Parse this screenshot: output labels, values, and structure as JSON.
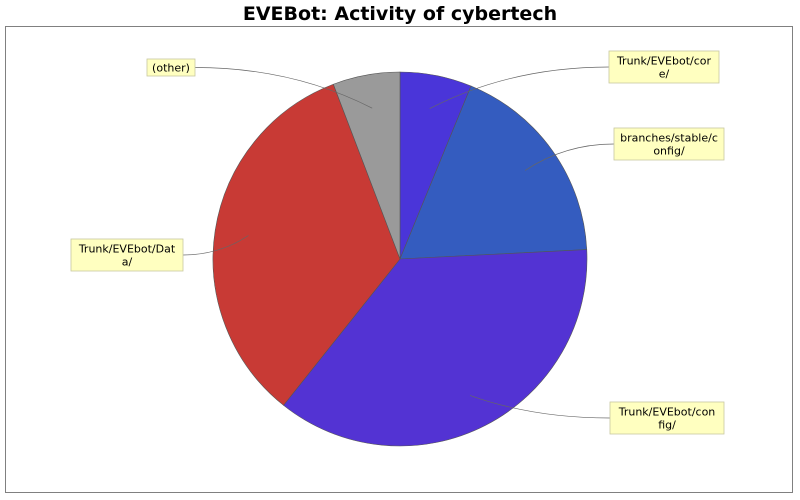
{
  "chart_data": {
    "type": "pie",
    "title": "EVEBot: Activity of cybertech",
    "slices": [
      {
        "label": "Trunk/EVEbot/core/",
        "label_lines": [
          "Trunk/EVEbot/cor",
          "e/"
        ],
        "value": 6.2,
        "color": "#4a35d9"
      },
      {
        "label": "branches/stable/config/",
        "label_lines": [
          "branches/stable/c",
          "onfig/"
        ],
        "value": 18.0,
        "color": "#345cbf"
      },
      {
        "label": "Trunk/EVEbot/config/",
        "label_lines": [
          "Trunk/EVEbot/con",
          "fig/"
        ],
        "value": 36.5,
        "color": "#5333d3"
      },
      {
        "label": "Trunk/EVEbot/Data/",
        "label_lines": [
          "Trunk/EVEbot/Dat",
          "a/"
        ],
        "value": 33.5,
        "color": "#c83a35"
      },
      {
        "label": "(other)",
        "label_lines": [
          "(other)"
        ],
        "value": 5.8,
        "color": "#9a9a9a"
      }
    ],
    "start_angle": "top",
    "direction": "clockwise",
    "legend": "none",
    "label_style": "callout"
  }
}
